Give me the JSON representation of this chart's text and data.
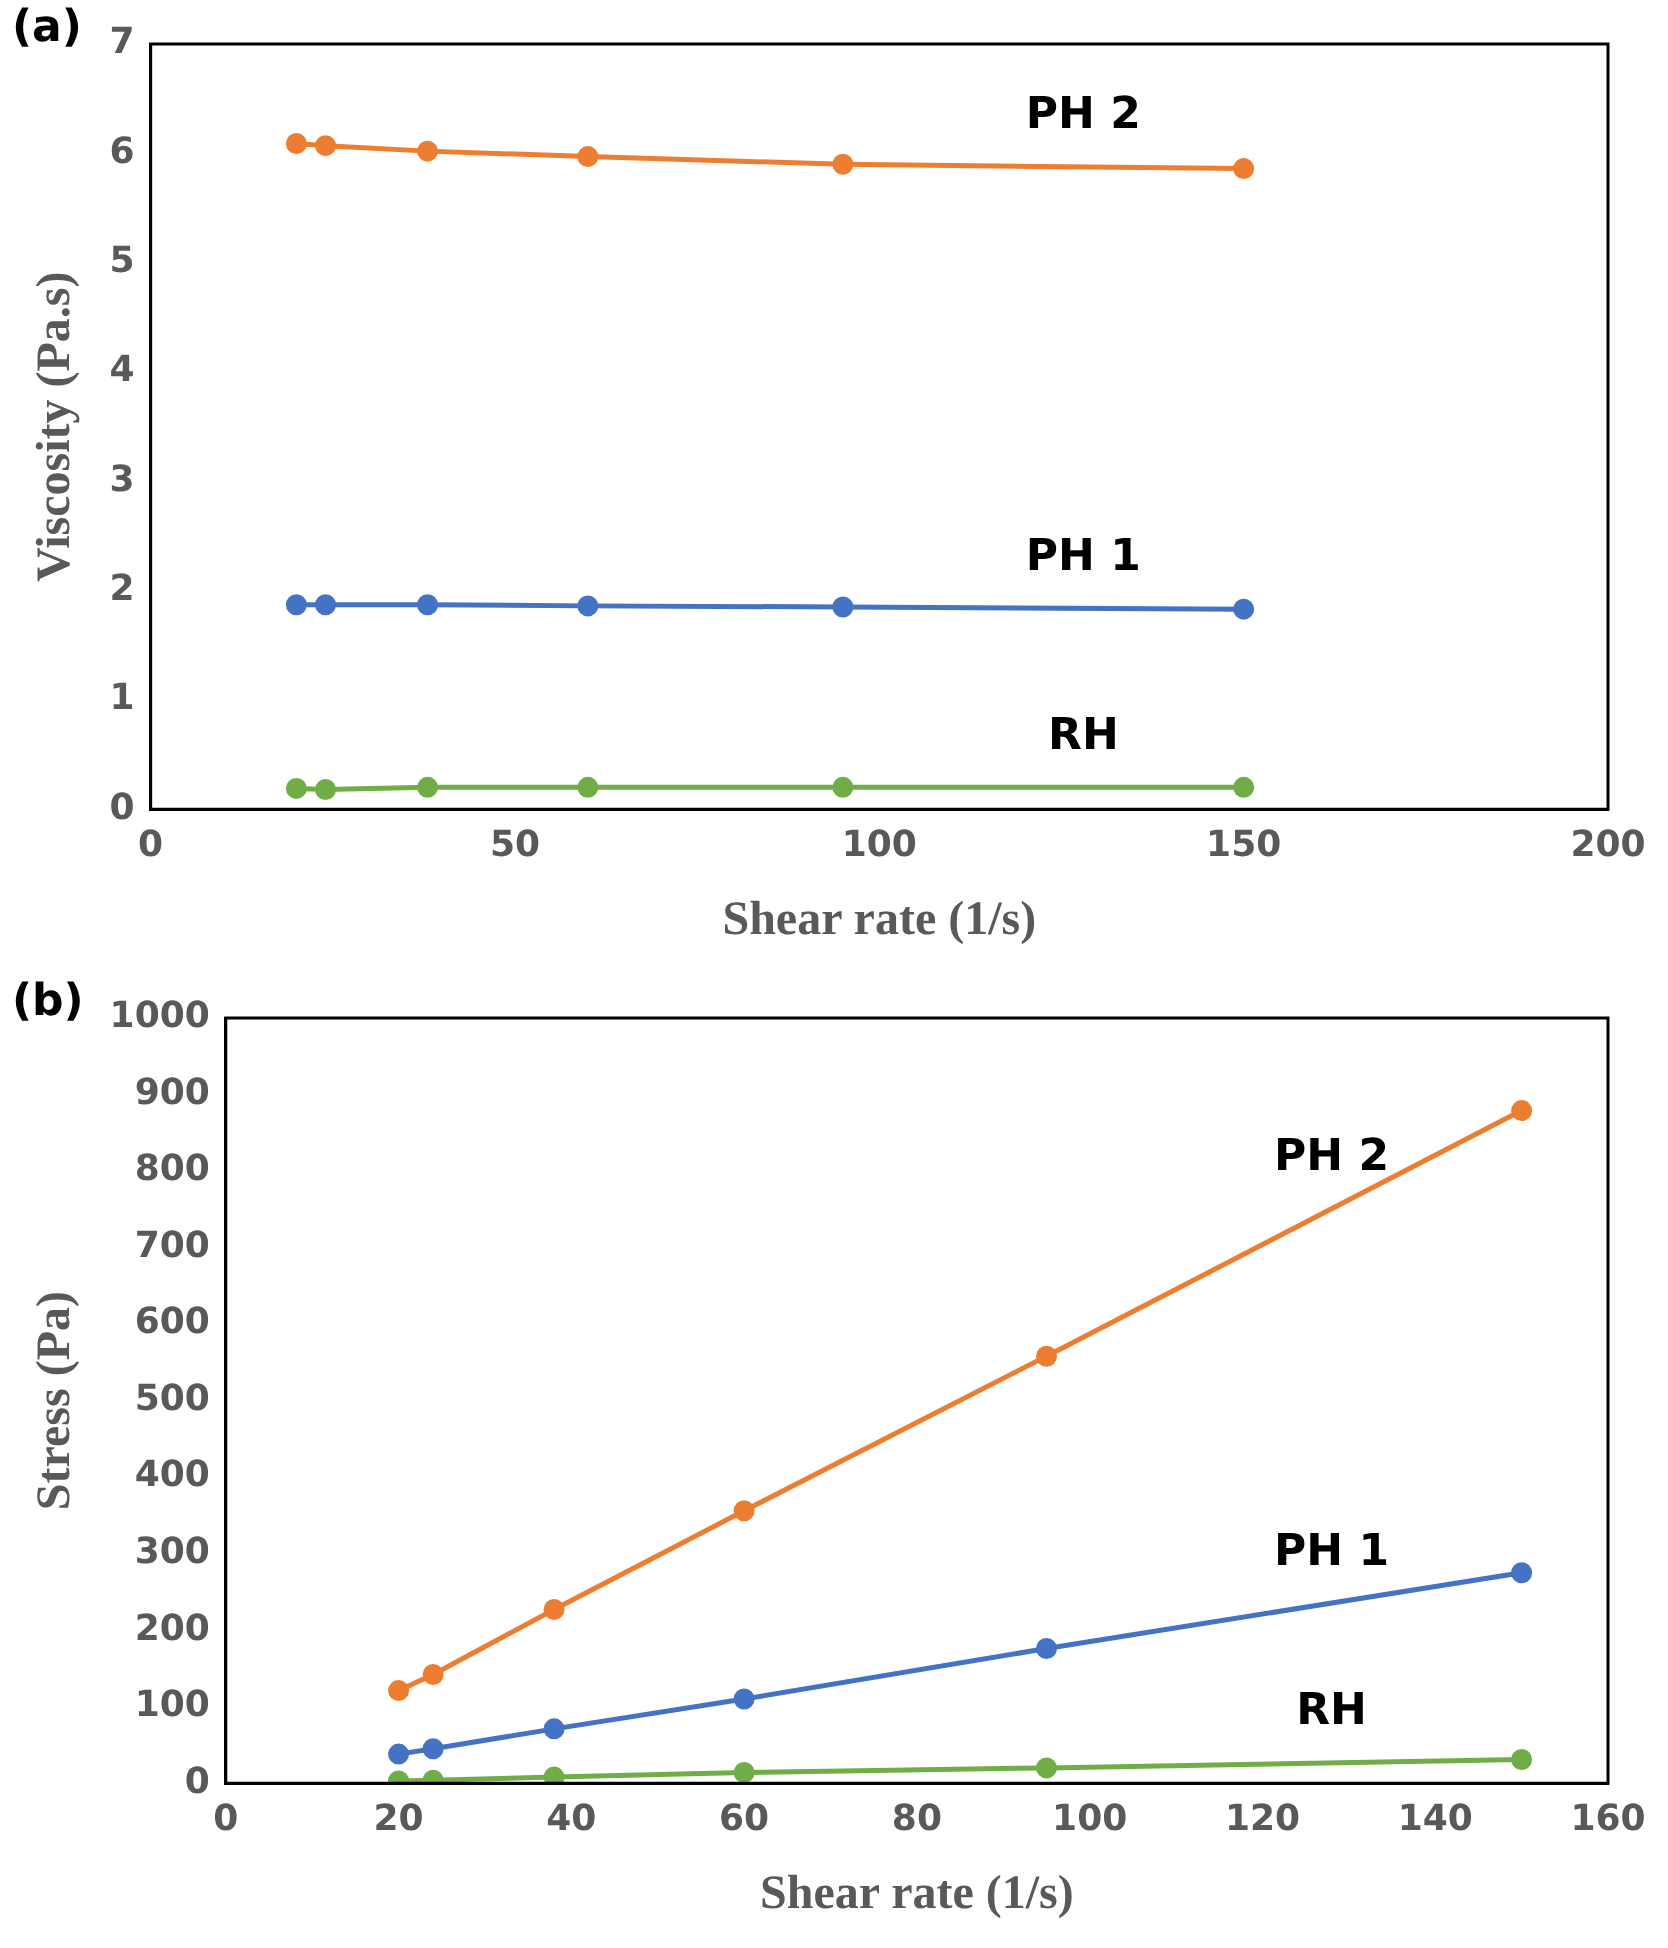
{
  "chart_data": [
    {
      "type": "line",
      "title": "(a)",
      "xlabel": "Shear rate (1/s)",
      "ylabel": "Viscosity (Pa.s)",
      "x": [
        20,
        24,
        38,
        60,
        95,
        150
      ],
      "series": [
        {
          "name": "PH 2",
          "color": "#ed7d31",
          "values": [
            6.09,
            6.07,
            6.02,
            5.97,
            5.9,
            5.86
          ]
        },
        {
          "name": "PH 1",
          "color": "#4472c4",
          "values": [
            1.87,
            1.87,
            1.87,
            1.86,
            1.85,
            1.83
          ]
        },
        {
          "name": "RH",
          "color": "#70ad47",
          "values": [
            0.19,
            0.18,
            0.2,
            0.2,
            0.2,
            0.2
          ]
        }
      ],
      "xlim": [
        0,
        200
      ],
      "xticks": [
        0,
        50,
        100,
        150,
        200
      ],
      "ylim": [
        0,
        7
      ],
      "yticks": [
        0,
        1,
        2,
        3,
        4,
        5,
        6,
        7
      ],
      "grid": false,
      "legend": false,
      "marker": "circle",
      "line_style": "solid"
    },
    {
      "type": "line",
      "title": "(b)",
      "xlabel": "Shear rate (1/s)",
      "ylabel": "Stress (Pa)",
      "x": [
        20,
        24,
        38,
        60,
        95,
        150
      ],
      "series": [
        {
          "name": "PH 2",
          "color": "#ed7d31",
          "values": [
            121,
            142,
            227,
            356,
            558,
            879
          ]
        },
        {
          "name": "PH 1",
          "color": "#4472c4",
          "values": [
            38,
            45,
            71,
            110,
            176,
            275
          ]
        },
        {
          "name": "RH",
          "color": "#70ad47",
          "values": [
            3,
            4,
            8,
            14,
            20,
            31
          ]
        }
      ],
      "xlim": [
        0,
        160
      ],
      "xticks": [
        0,
        20,
        40,
        60,
        80,
        100,
        120,
        140,
        160
      ],
      "ylim": [
        0,
        1000
      ],
      "yticks": [
        0,
        100,
        200,
        300,
        400,
        500,
        600,
        700,
        800,
        900,
        1000
      ],
      "grid": false,
      "legend": false,
      "marker": "circle",
      "line_style": "solid"
    }
  ]
}
